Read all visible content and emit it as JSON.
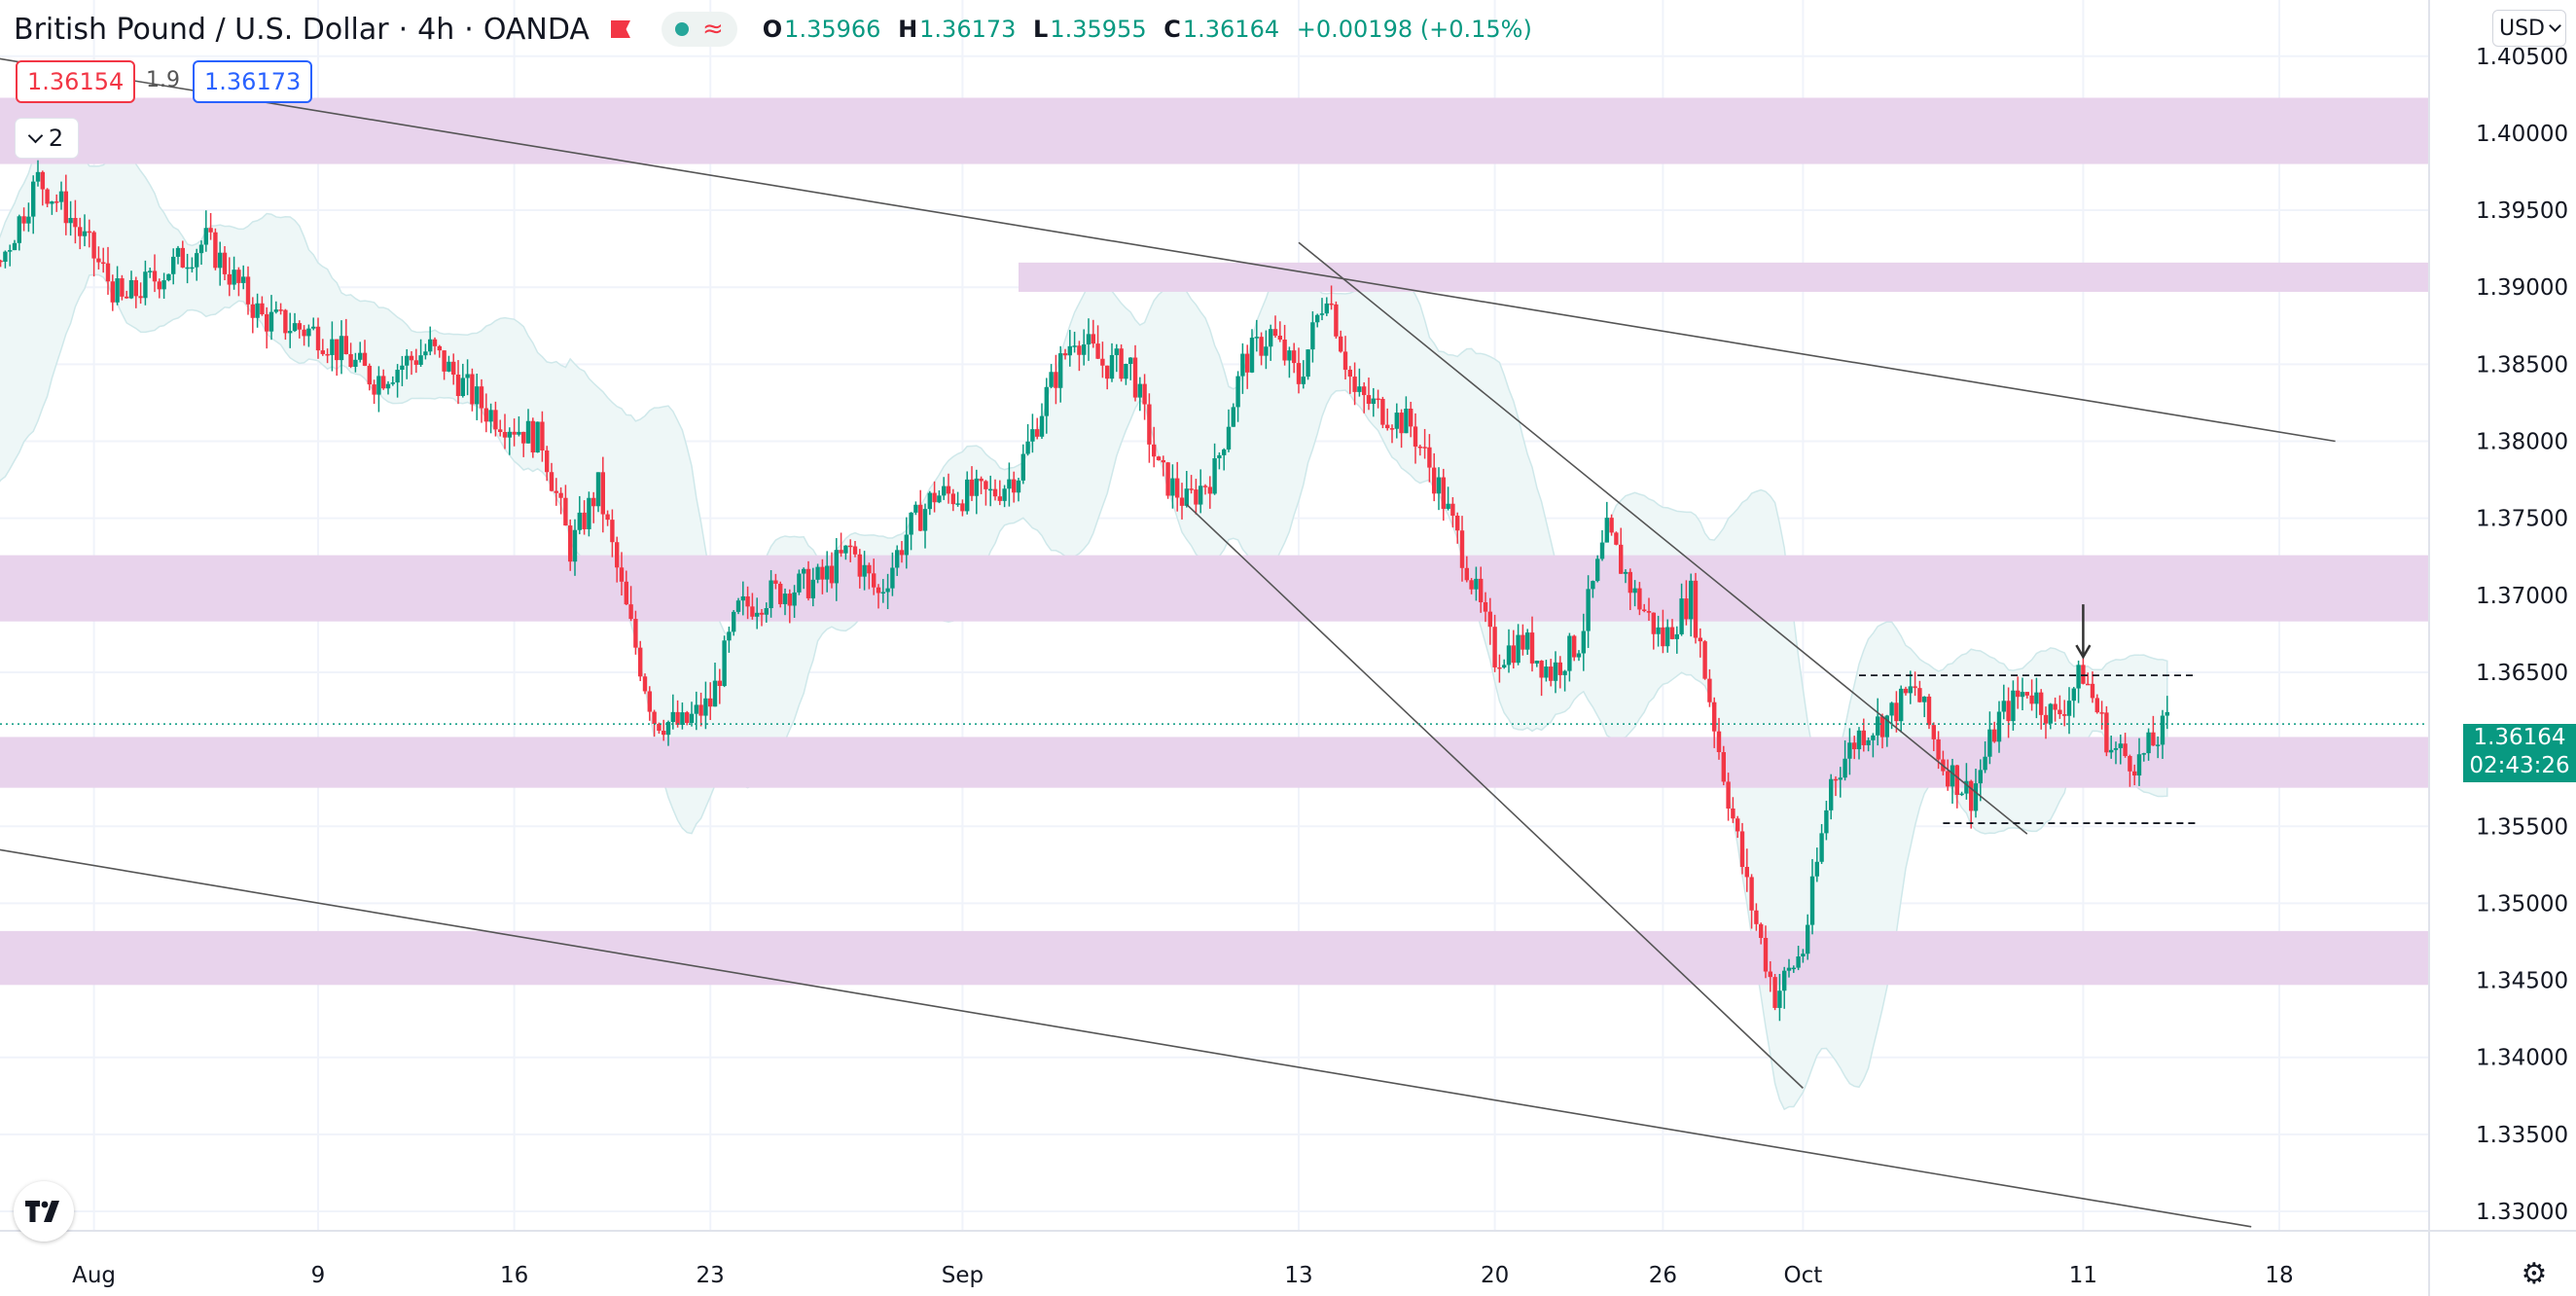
{
  "header": {
    "symbol": "British Pound / U.S. Dollar",
    "interval": "4h",
    "source": "OANDA",
    "ohlc": {
      "o_label": "O",
      "o": "1.35966",
      "h_label": "H",
      "h": "1.36173",
      "l_label": "L",
      "l": "1.35955",
      "c_label": "C",
      "c": "1.36164",
      "change": "+0.00198 (+0.15%)"
    }
  },
  "trade": {
    "sell": "1.36154",
    "spread": "1.9",
    "buy": "1.36173"
  },
  "indicators_toggle": {
    "count": "2"
  },
  "currency_selector": {
    "value": "USD"
  },
  "current_price": {
    "price": "1.36164",
    "countdown": "02:43:26"
  },
  "colors": {
    "up": "#089981",
    "down": "#f23645",
    "zone": "#e8d3ec",
    "band": "#eef7f7"
  },
  "icons": {
    "logo": "tradingview-logo-icon",
    "settings": "gear-icon",
    "flag": "flag-icon",
    "arrow": "down-arrow-icon"
  },
  "chart_data": {
    "type": "candlestick",
    "title": "British Pound / U.S. Dollar",
    "yaxis": {
      "ticks": [
        "1.40500",
        "1.40000",
        "1.39500",
        "1.39000",
        "1.38500",
        "1.38000",
        "1.37500",
        "1.37000",
        "1.36500",
        "1.36000",
        "1.35500",
        "1.35000",
        "1.34500",
        "1.34000",
        "1.33500",
        "1.33000"
      ],
      "ylim": [
        1.3275,
        1.4075
      ]
    },
    "xaxis": {
      "labels": [
        "26",
        "Aug",
        "9",
        "16",
        "23",
        "Sep",
        "13",
        "20",
        "26",
        "Oct",
        "11",
        "18"
      ]
    },
    "grid": true,
    "zones": [
      {
        "from": 1.398,
        "to": 1.4023,
        "start": "Jul 22"
      },
      {
        "from": 1.3897,
        "to": 1.3916,
        "start": "Sep 3"
      },
      {
        "from": 1.3683,
        "to": 1.3726,
        "start": "Jul 22"
      },
      {
        "from": 1.3575,
        "to": 1.3608,
        "start": "Jul 22"
      },
      {
        "from": 1.3447,
        "to": 1.3482,
        "start": "Jul 22"
      }
    ],
    "close_path": [
      [
        "Jul 22",
        1.379
      ],
      [
        "Jul 24",
        1.376
      ],
      [
        "Jul 27",
        1.385
      ],
      [
        "Jul 28",
        1.389
      ],
      [
        "Jul 30",
        1.397
      ],
      [
        "Jul 31",
        1.395
      ],
      [
        "Aug 2",
        1.389
      ],
      [
        "Aug 5",
        1.393
      ],
      [
        "Aug 7",
        1.388
      ],
      [
        "Aug 9",
        1.387
      ],
      [
        "Aug 11",
        1.384
      ],
      [
        "Aug 13",
        1.386
      ],
      [
        "Aug 15",
        1.382
      ],
      [
        "Aug 17",
        1.38
      ],
      [
        "Aug 18",
        1.373
      ],
      [
        "Aug 19",
        1.377
      ],
      [
        "Aug 20",
        1.369
      ],
      [
        "Aug 21",
        1.362
      ],
      [
        "Aug 22",
        1.3615
      ],
      [
        "Aug 23",
        1.363
      ],
      [
        "Aug 24",
        1.369
      ],
      [
        "Aug 25",
        1.37
      ],
      [
        "Aug 27",
        1.371
      ],
      [
        "Aug 28",
        1.373
      ],
      [
        "Aug 29",
        1.37
      ],
      [
        "Aug 30",
        1.374
      ],
      [
        "Aug 31",
        1.3765
      ],
      [
        "Sep 2",
        1.3765
      ],
      [
        "Sep 3",
        1.378
      ],
      [
        "Sep 4",
        1.383
      ],
      [
        "Sep 5",
        1.387
      ],
      [
        "Sep 6",
        1.385
      ],
      [
        "Sep 7",
        1.385
      ],
      [
        "Sep 8",
        1.378
      ],
      [
        "Sep 9",
        1.376
      ],
      [
        "Sep 10",
        1.378
      ],
      [
        "Sep 11",
        1.385
      ],
      [
        "Sep 12",
        1.387
      ],
      [
        "Sep 13",
        1.384
      ],
      [
        "Sep 14",
        1.39
      ],
      [
        "Sep 15",
        1.383
      ],
      [
        "Sep 16",
        1.382
      ],
      [
        "Sep 17",
        1.381
      ],
      [
        "Sep 18",
        1.377
      ],
      [
        "Sep 19",
        1.372
      ],
      [
        "Sep 20",
        1.366
      ],
      [
        "Sep 21",
        1.367
      ],
      [
        "Sep 22",
        1.365
      ],
      [
        "Sep 23",
        1.367
      ],
      [
        "Sep 24",
        1.374
      ],
      [
        "Sep 25",
        1.37
      ],
      [
        "Sep 26",
        1.367
      ],
      [
        "Sep 27",
        1.37
      ],
      [
        "Sep 28",
        1.36
      ],
      [
        "Sep 29",
        1.351
      ],
      [
        "Sep 30",
        1.344
      ],
      [
        "Oct 1",
        1.347
      ],
      [
        "Oct 2",
        1.358
      ],
      [
        "Oct 3",
        1.361
      ],
      [
        "Oct 4",
        1.362
      ],
      [
        "Oct 5",
        1.364
      ],
      [
        "Oct 6",
        1.359
      ],
      [
        "Oct 7",
        1.357
      ],
      [
        "Oct 8",
        1.362
      ],
      [
        "Oct 9",
        1.364
      ],
      [
        "Oct 10",
        1.362
      ],
      [
        "Oct 11",
        1.365
      ],
      [
        "Oct 12",
        1.36
      ],
      [
        "Oct 13",
        1.3592
      ],
      [
        "Oct 14",
        1.3616
      ]
    ],
    "lines": [
      {
        "from": [
          "Jul 18",
          1.408
        ],
        "to": [
          "Oct 20",
          1.38
        ]
      },
      {
        "from": [
          "Jul 22",
          1.3555
        ],
        "to": [
          "Oct 17",
          1.329
        ]
      },
      {
        "from": [
          "Sep 13",
          1.3929
        ],
        "to": [
          "Oct 9",
          1.3545
        ]
      },
      {
        "from": [
          "Sep 9",
          1.3759
        ],
        "to": [
          "Oct 1",
          1.338
        ]
      }
    ],
    "levels": [
      {
        "price": 1.3648,
        "from": "Oct 3",
        "to": "Oct 15"
      },
      {
        "price": 1.3552,
        "from": "Oct 6",
        "to": "Oct 15"
      }
    ],
    "marker": {
      "date": "Oct 11",
      "price": 1.366
    }
  }
}
